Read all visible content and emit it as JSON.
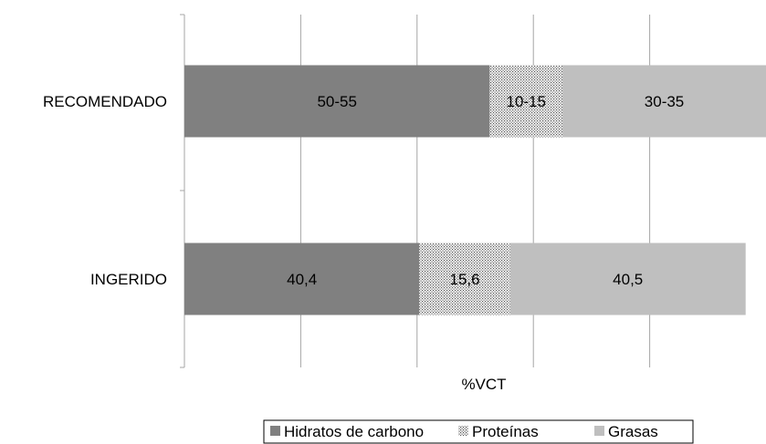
{
  "chart_data": {
    "type": "bar",
    "orientation": "horizontal",
    "stacked": true,
    "categories": [
      "RECOMENDADO",
      "INGERIDO"
    ],
    "xlabel": "%VCT",
    "ylabel": "",
    "xlim": [
      0,
      100
    ],
    "grid": true,
    "legend_position": "bottom",
    "series": [
      {
        "name": "Hidratos de carbono",
        "values": [
          52.5,
          40.4
        ],
        "labels": [
          "50-55",
          "40,4"
        ],
        "color": "#808080",
        "pattern": "solid"
      },
      {
        "name": "Proteínas",
        "values": [
          12.5,
          15.6
        ],
        "labels": [
          "10-15",
          "15,6"
        ],
        "color": "#ffffff",
        "pattern": "dots"
      },
      {
        "name": "Grasas",
        "values": [
          35,
          40.5
        ],
        "labels": [
          "30-35",
          "40,5"
        ],
        "color": "#bfbfbf",
        "pattern": "solid"
      }
    ]
  }
}
